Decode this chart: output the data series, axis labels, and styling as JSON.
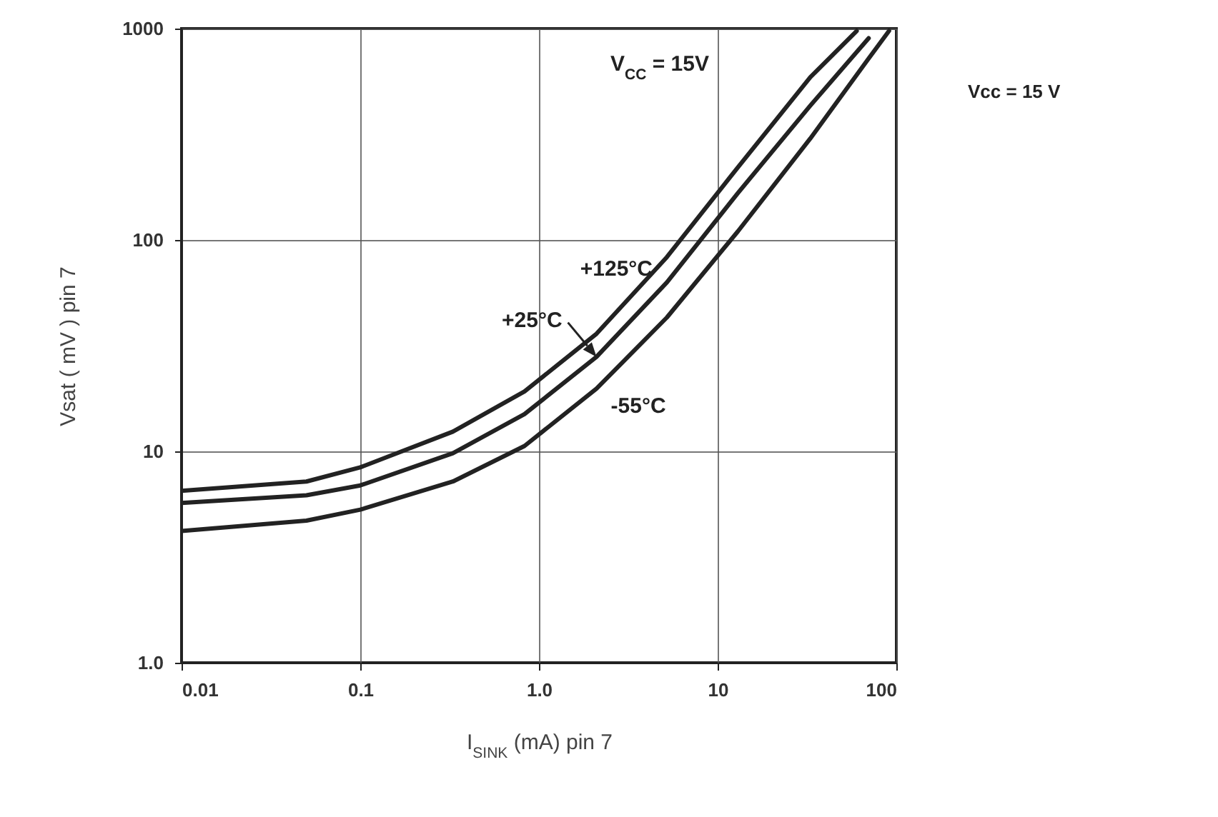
{
  "chart_data": {
    "type": "line",
    "xlabel": "I$_{SINK}$ (mA) pin 7",
    "ylabel": "Vsat ( mV ) pin 7",
    "log": "xy",
    "grid": true,
    "line_style": "solid",
    "marker": "none",
    "xlim": [
      0.01,
      100
    ],
    "xticks": [
      0.01,
      0.1,
      {
        "value": 1,
        "label": "1.0"
      },
      10,
      100
    ],
    "ylim": [
      1,
      1000
    ],
    "yticks": [
      {
        "value": 1,
        "label": "1.0"
      },
      10,
      100,
      1000
    ],
    "annotations": [
      "V$_{CC}$ = 15V",
      "Vcc = 15 V"
    ],
    "series": [
      {
        "name": "+125°C",
        "color": "#222222",
        "x": [
          0.01,
          0.05,
          0.1,
          0.33,
          0.83,
          2.1,
          5.2,
          13,
          33,
          60
        ],
        "values": [
          6.5,
          7.2,
          8.4,
          12.4,
          19.2,
          36,
          83,
          221,
          589,
          975
        ]
      },
      {
        "name": "+25°C",
        "color": "#222222",
        "x": [
          0.01,
          0.05,
          0.1,
          0.33,
          0.83,
          2.1,
          5.2,
          13,
          33,
          70
        ],
        "values": [
          5.7,
          6.2,
          6.9,
          9.8,
          15,
          28,
          63,
          167,
          432,
          900
        ]
      },
      {
        "name": "-55°C",
        "color": "#222222",
        "x": [
          0.01,
          0.05,
          0.1,
          0.33,
          0.83,
          2.1,
          5.2,
          13,
          33,
          69,
          91
        ],
        "values": [
          4.2,
          4.7,
          5.3,
          7.2,
          10.6,
          19.8,
          43,
          110,
          302,
          710,
          975
        ]
      }
    ]
  }
}
